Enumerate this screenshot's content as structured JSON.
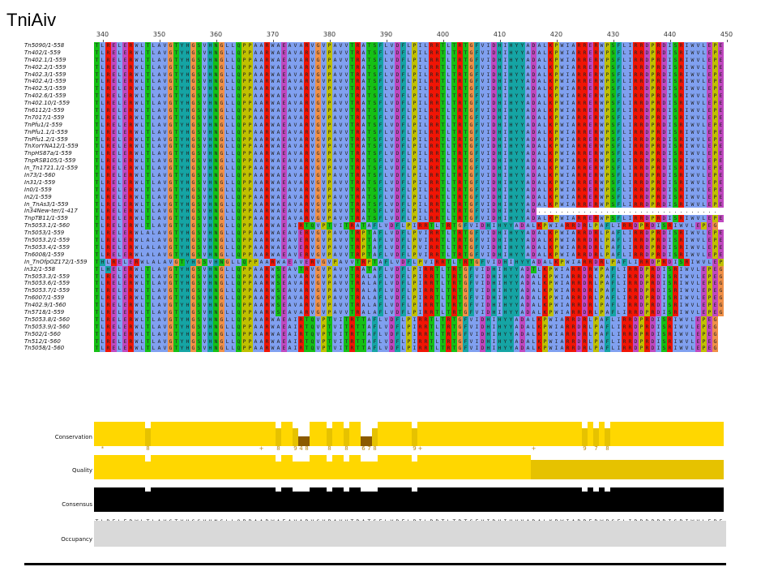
{
  "title": "TniAiv",
  "ruler": [
    "340",
    "350",
    "360",
    "370",
    "380",
    "390",
    "400",
    "410",
    "420",
    "430",
    "440",
    "450"
  ],
  "ruler_start": 340,
  "sequences": [
    {
      "name": "Tn5090/1-558",
      "seq": "TLRELERWLTLAVGTYHGSVHNGLLQPPAARWAEAVARVGVPAVVTRATSFLVDFLPILRRTLTRTGFVIDHIHYYADALKPWIARRERWPSFLIRRDPRDISRIWVLEPEG"
    },
    {
      "name": "Tn402/1-559",
      "seq": "TLRELERWLTLAVGTYHGSVHNGLLQPPAARWAEAVARVGVPAVVTRATSFLVDFLPILRRTLTRTGFVIDHIHYYADALKPWIARRERWPSFLIRRDPRDISRIWVLEPEG"
    },
    {
      "name": "Tn402.1/1-559",
      "seq": "TLRELERWLTLAVGTYHGSVHNGLLQPPAARWAEAVARVGVPAVVTRATSFLVDFLPILRRTLTRTGFVIDHIHYYADALKPWIARRERWPSFLIRRDPRDISRIWVLEPEG"
    },
    {
      "name": "Tn402.2/1-559",
      "seq": "TLRELERWLTLAVGTYHGSVHNGLLQPPAARWAEAVARVGVPAVVTRATSFLVDFLPILRRTLTRTGFVIDHIHYYADALKPWIARRERWPSFLIRRDPRDISRIWVLEPEG"
    },
    {
      "name": "Tn402.3/1-559",
      "seq": "TLRELERWLTLAVGTYHGSVHNGLLQPPAARWAEAVARVGVPAVVTRATSFLVDFLPILRRTLTRTGFVIDHIHYYADALKPWIARRERWPSFLIRRDPRDISRIWVLEPEG"
    },
    {
      "name": "Tn402.4/1-559",
      "seq": "TLRELERWLTLAVGTYHGSVHNGLLQPPAARWAEAVARVGVPAVVTRATSFLVDFLPILRRTLTRTGFVIDHIHYYADALKPWIARRERWPSFLIRRDPRDISRIWVLEPEG"
    },
    {
      "name": "Tn402.5/1-559",
      "seq": "TLRELERWLTLAVGTYHGSVHNGLLQPPAARWAEAVARVGVPAVVTRATSFLVDFLPILRRTLTRTGFVIDHIHYYADALKPWIARRERWPSFLIRRDPRDISRIWVLEPEG"
    },
    {
      "name": "Tn402.6/1-559",
      "seq": "TLRELERWLTLAVGTYHGSVHNGLLQPPAARWAEAVARVGVPAVVTRATSFLVDFLPILRRTLTRTGFVIDHIHYYADALKPWIARRERWPSFLIRRDPRDISRIWVLEPEG"
    },
    {
      "name": "Tn402.10/1-559",
      "seq": "TLRELERWLTLAVGTYHGSVHNGLLQPPAARWAEAVARVGVPAVVTRATSFLVDFLPILRRTLTRTGFVIDHIHYYADALKPWIARRERWPSFLIRRDPRDISRIWVLEPEG"
    },
    {
      "name": "Tn6112/1-559",
      "seq": "TLRELERWLTLAVGTYHGSVHNGLLQPPAARWAEAVARVGVPAVVTRATSFLVDFLPILRRTLTRTGFVIDHIHYYADALKPWIARRERWPSFLIRRDPRDISRIWVLEPEG"
    },
    {
      "name": "Tn7017/1-559",
      "seq": "TLRELERWLTLAVGTYHGSVHNGLLQPPAARWAEAVARVGVPAVVTRATSFLVDFLPILRRTLTRTGFVIDHIHYYADALKPWIARRERWPSFLIRRDPRDISRIWVLEPEG"
    },
    {
      "name": "TnPfu1/1-559",
      "seq": "TLRELERWLTLAVGTYHGSVHNGLLQPPAARWAEAVARVGVPAVVTRATSFLVDFLPILRRTLTRTGFVIDHIHYYADALKPWIARRERWPSFLIRRDPRDISRIWVLEPEG"
    },
    {
      "name": "TnPfu1.1/1-559",
      "seq": "TLRELERWLTLAVGTYHGSVHNGLLQPPAARWAEAVARVGVPAVVTRATSFLVDFLPILRRTLTRTGFVIDHIHYYADALKPWIARRERWPSFLIRRDPRDISRIWVLEPEG"
    },
    {
      "name": "TnPfu1.2/1-559",
      "seq": "TLRELERWLTLAVGTYHGSVHNGLLQPPAARWAEAVARVGVPAVVTRATSFLVDFLPILRRTLTRTGFVIDHIHYYADALKPWIARRERWPSFLIRRDPRDISRIWVLEPEG"
    },
    {
      "name": "TnXorYNA12/1-559",
      "seq": "TLRELERWLTLAVGTYHGSVHNGLLQPPAARWAEAVARVGVPAVVTRATSFLVDFLPILRRTLTRTGFVIDHIHYYADALKPWIARRERWPSFLIRRDPRDISRIWVLEPEG"
    },
    {
      "name": "TnpHS87a/1-559",
      "seq": "TLRELERWLTLAVGTYHGSVHNGLLQPPAARWAEAVARVGVPAVVTRATSFLVDFLPILRRTLTRTGFVIDHIHYYADALKPWIARRERWPSFLIRRDPRDISRIWVLEPEG"
    },
    {
      "name": "TnpRSB105/1-559",
      "seq": "TLRELERWLTLAVGTYHGSVHNGLLQPPAARWAEAVARVGVPAVVTRATSFLVDFLPILRRTLTRTGFVIDHIHYYADALKPWIARRERWPSFLIRRDPRDISRIWVLEPEG"
    },
    {
      "name": "In_Tn1721.1/1-559",
      "seq": "TLRELERWLTLAVGTYHGSVHNGLLQPPAARWAEAVARVGVPAVVTRATSFLVDFLPILRRTLTRTGFVIDHIHYYADALKPWIARRERWPSFLIRRDPRDISRIWVLEPEG"
    },
    {
      "name": "In73/1-560",
      "seq": "TLRELERWLTLAVGTYHGSVHNGLLQPPAARWAEAVARVGVPAVVTRATSFLVDFLPILRRTLTRTGFVIDHIHYYADALKPWIARRERWPSFLIRRDPRDISRIWVLEPEG"
    },
    {
      "name": "In31/1-559",
      "seq": "TLRELERWLTLAVGTYHGSVHNGLLQPPAARWAEAVARVGVPAVVTRATSFLVDFLPILRRTLTRTGFVIDHIHYYADALKPWIARRERWPSFLIRRDPRDISRIWVLEPEG"
    },
    {
      "name": "In0/1-559",
      "seq": "TLRELERWLTLAVGTYHGSVHNGLLQPPAARWAEAVARVGVPAVVTRATSFLVDFLPILRRTLTRTGFVIDHIHYYADALKPWIARRERWPSFLIRRDPRDISRIWVLEPEG"
    },
    {
      "name": "In2/1-559",
      "seq": "TLRELERWLTLAVGTYHGSVHNGLLQPPAARWAEAVARVGVPAVVTRATSFLVDFLPILRRTLTRTGFVIDHIHYYADALKPWIARRERWPSFLIRRDPRDISRIWVLEPEG"
    },
    {
      "name": "In_TnAs3/1-559",
      "seq": "TLRELERWLTLAVGTYHGSVHNGLLQPPAARWAEAVARVGVPAVVTRATSFLVDFLPILRRTLTRTGFVIDHIHYYADALKPWIARRERWPSFLIRRDPRDISRIWVLEPEG"
    },
    {
      "name": "In34New-ter/1-417",
      "seq": "TLRELERWLTLAVGTYHGSVHNGLLQPPAARWAEAVARVGVPAVVTRATSFLVDFLPILRRTLTRTGFVIDHIHYYAD................................"
    },
    {
      "name": "TnpTB11/1-559",
      "seq": "TLRELERWLTLAVGTYHGSVHNGLLQPPAARWAEAVARVGVPAVVTRATSFLVDFLPILRRTLTRTGFVIDHIHYYADALKPWIARRERWPSFLIRRDPRDISRIWVLEPEG"
    },
    {
      "name": "Tn5053.1/1-560",
      "seq": "TLRELERWLTLAVGTYHGSVHNGLLQPPAARWAEAIRTQVPTVITRATAFLVDFLPIRRTLTRTGFVIDHIHYYADALKPWIARRDRLPAFLIRRDPRDISRIWVLEPEG"
    },
    {
      "name": "Tn5053/1-559",
      "seq": "TLRELERWLALAVGTYHGSVHNGLLQPPAARWAEAVERVGVPAVVTRPTAFLVDFLPVIRRTLTRTGFVIDHIHYYADALKPWIARRDRLPAFLIRRDPRDISRIWVLEPEG"
    },
    {
      "name": "Tn5053.2/1-559",
      "seq": "TLRELERWLALAVGTYHGSVHNGLLQPPAARWAEAVERVGVPAVVTRPTAFLVDFLPVIRRTLTRTGFVIDHIHYYADALKPWIARRDRLPAFLIRRDPRDISRIWVLEPEG"
    },
    {
      "name": "Tn5053.4/1-559",
      "seq": "TLRELERWLALAVGTYHGSVHNGLLQPPAARWAEAVERVGVPAVVTRPTAFLVDFLPVIRRTLTRTGFVIDHIHYYADALKPWIARRDRLPAFLIRRDPRDISRIWVLEPEG"
    },
    {
      "name": "Tn6008/1-559",
      "seq": "TLRELERWLALAVGTYHGSVHNGLLQPPAARWAEAVERVGVPAVVTRPTAFLVDFLPVIRRTLTRTGFVIDHIHYYADALKPWIARRDRLPAFLIRRDPRDISRIWVLEPEG"
    },
    {
      "name": "In_TnOfpOZ172/1-559",
      "seq": "THLRELERWLALAVGTYHGSVHNGLLQPPAARWAEAVERVGVPAVVTRPTAFLVDFLPVIRRTLTRTGFVIDHIHYYADALKPWIARRDRLPAFLIRRDPRDISRIWVLEPE"
    },
    {
      "name": "In32/1-558",
      "seq": "TLHELERWLTLAVGTYHGSVHNGLLQPPAARWSEAVTRVGVPAVVTRATAFLVDFLPIRRTLTRTGFVIDHIHYYADTLKPWIARRDRWPAFLIRRDPRDISRIWVLEPEG"
    },
    {
      "name": "Tn5053.3/1-559",
      "seq": "TLRELERWLTLAVGTYHGSVHNGLLQPPAARWSEAVARVGVPAVVTRALAFLVDFLPIRRTLTRTGFVIDHIHYYADALKPWIARRDRLPAFLIRRDPRDISRIWVLEPEG"
    },
    {
      "name": "Tn5053.6/1-559",
      "seq": "TLRELERWLTLAVGTYHGSVHNGLLQPPAARWSEAVARVGVPAVVTRALAFLVDFLPIRRTLTRTGFVIDHIHYYADALKPWIARRDRLPAFLIRRDPRDISRIWVLEPEG"
    },
    {
      "name": "Tn5053.7/1-559",
      "seq": "TLRELERWLTLAVGTYHGSVHNGLLQPPAARWSEAVARVGVPAVVTRALAFLVDFLPIRRTLTRTGFVIDHIHYYADALKPWIARRDRLPAFLIRRDPRDISRIWVLEPEG"
    },
    {
      "name": "Tn6007/1-559",
      "seq": "TLRELERWLTLAVGTYHGSVHNGLLQPPAARWSEAVARVGVPAVVTRALAFLVDFLPIRRTLTRTGFVIDHIHYYADALKPWIARRDRLPAFLIRRDPRDISRIWVLEPEG"
    },
    {
      "name": "Tn402.9/1-560",
      "seq": "TLRELERWLTLAVGTYHGSVHNGLLQPPAARWSEAVARVGVPAVVTRALAFLVDFLPIRRTLTRTGFVIDHIHYYADALKPWIARRDRLPAFLIRRDPRDISRIWVLEPEG"
    },
    {
      "name": "Tn5718/1-559",
      "seq": "TLRELERWLTLAVGTYHGSVHNGLLQPPAARWSEAVARVGVPAVVTRALAFLVDFLPIRRTLTRTGFVIDHIHYYADALKPWIARRDRLPAFLIRRDPRDISRIWVLEPEG"
    },
    {
      "name": "Tn5053.8/1-560",
      "seq": "TLRELERWLTLAVGTYHGSVHNGLLQPPAARWAEAIRTQVPTVITRTTAFLVDFLPIRRTLTRTGFVIDHIHYYADALKPWIARRDRLPAFLIRRDPRDISRIWVLEPEG"
    },
    {
      "name": "Tn5053.9/1-560",
      "seq": "TLRELERWLTLAVGTYHGSVHNGLLQPPAARWAEAIRTQVPTVITRTTAFLVDFLPIRRTLTRTGFVIDHIHYYADALKPWIARRDRLPAFLIRRDPRDISRIWVLEPEG"
    },
    {
      "name": "Tn502/1-560",
      "seq": "TLRELERWLTLAVGTYHGSVHNGLLQPPAARWAEAIRTQVPTVITRTTAFLVDFLPIRRTLTRTGFVIDHIHYYADALKPWIARRDRLPAFLIRRDPRDISRIWVLEPEG"
    },
    {
      "name": "Tn512/1-560",
      "seq": "TLRELERWLTLAVGTYHGSVHNGLLQPPAARWAEAIRTQVPTVITRTTAFLVDFLPIRRTLTRTGFVIDHIHYYADALKPWIARRDRLPAFLIRRDPRDISRIWVLEPEG"
    },
    {
      "name": "Tn5058/1-560",
      "seq": "TLRELERWLTLAVGTYHGSVHNGLLQPPAARWAEAIRTQVPTVITRTTAFLVDFLPIRRTLTRTGFVIDHIHYYADALKPWIARRDRLPAFLIRRDPRDISRIWVLEPEG"
    }
  ],
  "annotations": {
    "conservation_label": "Conservation",
    "quality_label": "Quality",
    "consensus_label": "Consensus",
    "occupancy_label": "Occupancy",
    "conservation_scores": [
      {
        "col": 1,
        "v": "*"
      },
      {
        "col": 9,
        "v": "8"
      },
      {
        "col": 29,
        "v": "+"
      },
      {
        "col": 32,
        "v": "8"
      },
      {
        "col": 35,
        "v": "9"
      },
      {
        "col": 36,
        "v": "4"
      },
      {
        "col": 37,
        "v": "8"
      },
      {
        "col": 41,
        "v": "8"
      },
      {
        "col": 44,
        "v": "8"
      },
      {
        "col": 47,
        "v": "6"
      },
      {
        "col": 48,
        "v": "7"
      },
      {
        "col": 49,
        "v": "8"
      },
      {
        "col": 56,
        "v": "9"
      },
      {
        "col": 57,
        "v": "+"
      },
      {
        "col": 77,
        "v": "+"
      },
      {
        "col": 86,
        "v": "9"
      },
      {
        "col": 88,
        "v": "7"
      },
      {
        "col": 90,
        "v": "8"
      }
    ],
    "consensus_sequence": "TLRELERWLTLAVGTYHGSVHNGLLQPPAARWAEAVARVGVPAVVTRATSFLVDFLPILRRTLTRTGFVIDHIHYYADALKPWIARRERWPSFLIRRDPRDISRIWVLEPEG"
  },
  "colors": {
    "hydrophobic": "#80a0f0",
    "positive": "#f01505",
    "negative": "#c048c0",
    "polar": "#15c015",
    "cysteine": "#f08080",
    "glycine": "#f09048",
    "proline": "#c0c000",
    "aromatic": "#15a4a4",
    "conservation": "#ffd700",
    "occupancy": "#d9d9d9"
  }
}
